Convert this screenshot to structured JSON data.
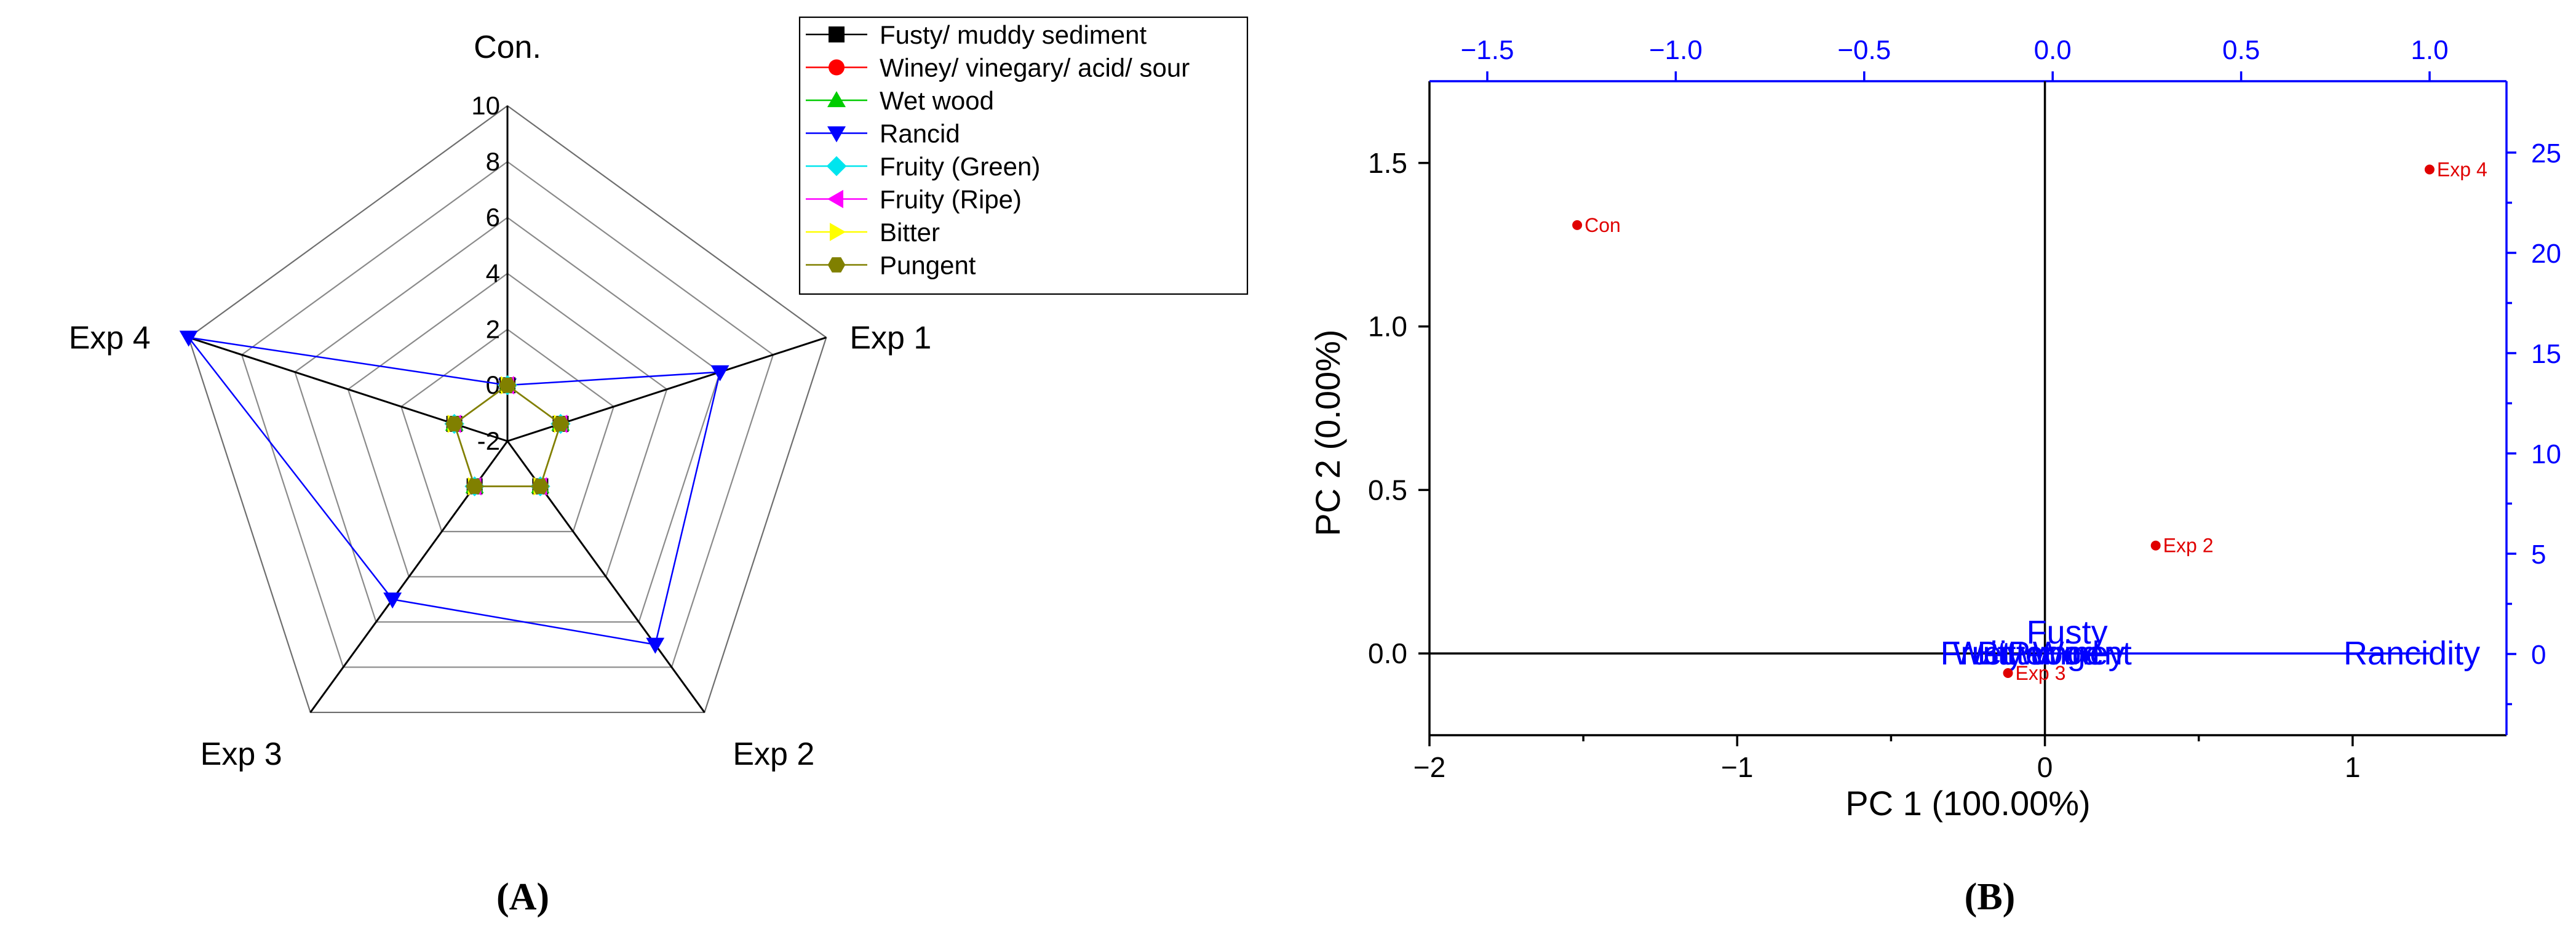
{
  "panel_labels": {
    "a": "(A)",
    "b": "(B)"
  },
  "chart_data": [
    {
      "type": "radar",
      "panel": "(A)",
      "axes": [
        "Con.",
        "Exp 1",
        "Exp 2",
        "Exp 3",
        "Exp 4"
      ],
      "r_range": [
        -2,
        10
      ],
      "ticks": [
        "-2",
        "0",
        "2",
        "4",
        "6",
        "8",
        "10"
      ],
      "legend_position": "top-right",
      "series": [
        {
          "name": "Fusty/ muddy sediment",
          "values": [
            0,
            0,
            0,
            0,
            0
          ],
          "color": "#000000",
          "marker": "square"
        },
        {
          "name": "Winey/ vinegary/ acid/ sour",
          "values": [
            0,
            0,
            0,
            0,
            0
          ],
          "color": "#ff0000",
          "marker": "circle"
        },
        {
          "name": "Wet wood",
          "values": [
            0,
            0,
            0,
            0,
            0
          ],
          "color": "#00cc00",
          "marker": "triangle-up"
        },
        {
          "name": "Rancid",
          "values": [
            0,
            6,
            7,
            5,
            10
          ],
          "color": "#0000ff",
          "marker": "triangle-down"
        },
        {
          "name": "Fruity (Green)",
          "values": [
            0,
            0,
            0,
            0,
            0
          ],
          "color": "#00e5ee",
          "marker": "diamond"
        },
        {
          "name": "Fruity (Ripe)",
          "values": [
            0,
            0,
            0,
            0,
            0
          ],
          "color": "#ff00ff",
          "marker": "triangle-left"
        },
        {
          "name": "Bitter",
          "values": [
            0,
            0,
            0,
            0,
            0
          ],
          "color": "#ffff00",
          "marker": "triangle-right"
        },
        {
          "name": "Pungent",
          "values": [
            0,
            0,
            0,
            0,
            0
          ],
          "color": "#808000",
          "marker": "hexagon"
        }
      ]
    },
    {
      "type": "scatter",
      "subtype": "biplot",
      "panel": "(B)",
      "xlabel": "PC 1 (100.00%)",
      "ylabel": "PC 2 (0.00%)",
      "xlim": [
        -2,
        1.5
      ],
      "ylim": [
        -0.25,
        1.75
      ],
      "xticks": [
        -2,
        -1,
        0,
        1
      ],
      "yticks": [
        0.0,
        0.5,
        1.0,
        1.5
      ],
      "top_axis_ticks": [
        -1.5,
        -1.0,
        -0.5,
        0.0,
        0.5,
        1.0
      ],
      "right_axis_ticks": [
        0,
        5,
        10,
        15,
        20,
        25
      ],
      "scores": [
        {
          "label": "Con",
          "x": -1.52,
          "y": 1.31
        },
        {
          "label": "Exp 4",
          "x": 1.25,
          "y": 1.48
        },
        {
          "label": "Exp 2",
          "x": 0.36,
          "y": 0.33
        },
        {
          "label": "Exp 3",
          "x": -0.12,
          "y": -0.06
        }
      ],
      "loadings": [
        {
          "label": "Rancidity",
          "x": 1.0,
          "y": 0.0
        },
        {
          "label": "Fusty",
          "x": 0.0,
          "y": 0.0
        },
        {
          "label": "Fruity",
          "x": 0.0,
          "y": 0.0
        },
        {
          "label": "Pungent",
          "x": 0.0,
          "y": 0.0
        },
        {
          "label": "Wet wood",
          "x": 0.0,
          "y": 0.0
        },
        {
          "label": "Winey",
          "x": 0.0,
          "y": 0.0
        },
        {
          "label": "Bitter",
          "x": 0.0,
          "y": 0.0
        }
      ],
      "colors": {
        "scores": "#e00000",
        "loadings": "#0000ff",
        "secondary_axes": "#0000ff"
      }
    }
  ]
}
